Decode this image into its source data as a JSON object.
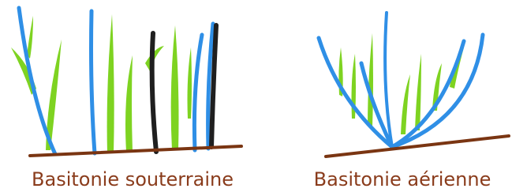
{
  "diagrams": [
    {
      "label": "Basitonie souterraine"
    },
    {
      "label": "Basitonie aérienne"
    }
  ]
}
